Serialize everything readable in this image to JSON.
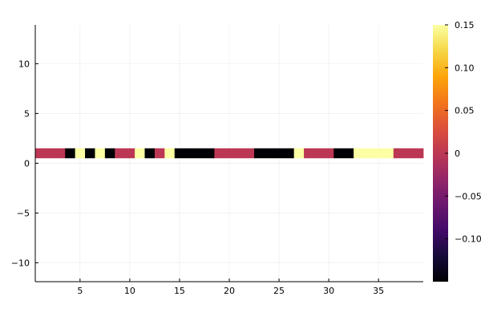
{
  "chart_data": {
    "type": "heatmap",
    "title": "",
    "xlabel": "",
    "ylabel": "",
    "xlim": [
      0.5,
      39.5
    ],
    "ylim": [
      -11.9,
      13.9
    ],
    "grid": true,
    "x_ticks": [
      5,
      10,
      15,
      20,
      25,
      30,
      35
    ],
    "y_ticks": [
      -10,
      -5,
      0,
      5,
      10
    ],
    "y_tick_labels": [
      "−10",
      "−5",
      "0",
      "5",
      "10"
    ],
    "row": {
      "y_center": 1,
      "height": 1
    },
    "cells": [
      {
        "x": 1,
        "value": 0
      },
      {
        "x": 2,
        "value": 0
      },
      {
        "x": 3,
        "value": 0
      },
      {
        "x": 4,
        "value": -0.15
      },
      {
        "x": 5,
        "value": 0.15
      },
      {
        "x": 6,
        "value": -0.15
      },
      {
        "x": 7,
        "value": 0.15
      },
      {
        "x": 8,
        "value": -0.15
      },
      {
        "x": 9,
        "value": 0
      },
      {
        "x": 10,
        "value": 0
      },
      {
        "x": 11,
        "value": 0.15
      },
      {
        "x": 12,
        "value": -0.15
      },
      {
        "x": 13,
        "value": 0
      },
      {
        "x": 14,
        "value": 0.15
      },
      {
        "x": 15,
        "value": -0.15
      },
      {
        "x": 16,
        "value": -0.15
      },
      {
        "x": 17,
        "value": -0.15
      },
      {
        "x": 18,
        "value": -0.15
      },
      {
        "x": 19,
        "value": 0
      },
      {
        "x": 20,
        "value": 0
      },
      {
        "x": 21,
        "value": 0
      },
      {
        "x": 22,
        "value": 0
      },
      {
        "x": 23,
        "value": -0.15
      },
      {
        "x": 24,
        "value": -0.15
      },
      {
        "x": 25,
        "value": -0.15
      },
      {
        "x": 26,
        "value": -0.15
      },
      {
        "x": 27,
        "value": 0.15
      },
      {
        "x": 28,
        "value": 0
      },
      {
        "x": 29,
        "value": 0
      },
      {
        "x": 30,
        "value": 0
      },
      {
        "x": 31,
        "value": -0.15
      },
      {
        "x": 32,
        "value": -0.15
      },
      {
        "x": 33,
        "value": 0.15
      },
      {
        "x": 34,
        "value": 0.15
      },
      {
        "x": 35,
        "value": 0.15
      },
      {
        "x": 36,
        "value": 0.15
      },
      {
        "x": 37,
        "value": 0
      },
      {
        "x": 38,
        "value": 0
      },
      {
        "x": 39,
        "value": 0
      }
    ],
    "colorbar": {
      "colormap": "inferno",
      "range": [
        -0.15,
        0.15
      ],
      "ticks": [
        -0.1,
        -0.05,
        0,
        0.05,
        0.1,
        0.15
      ],
      "tick_labels": [
        "−0.10",
        "−0.05",
        "0",
        "0.05",
        "0.10",
        "0.15"
      ]
    }
  }
}
